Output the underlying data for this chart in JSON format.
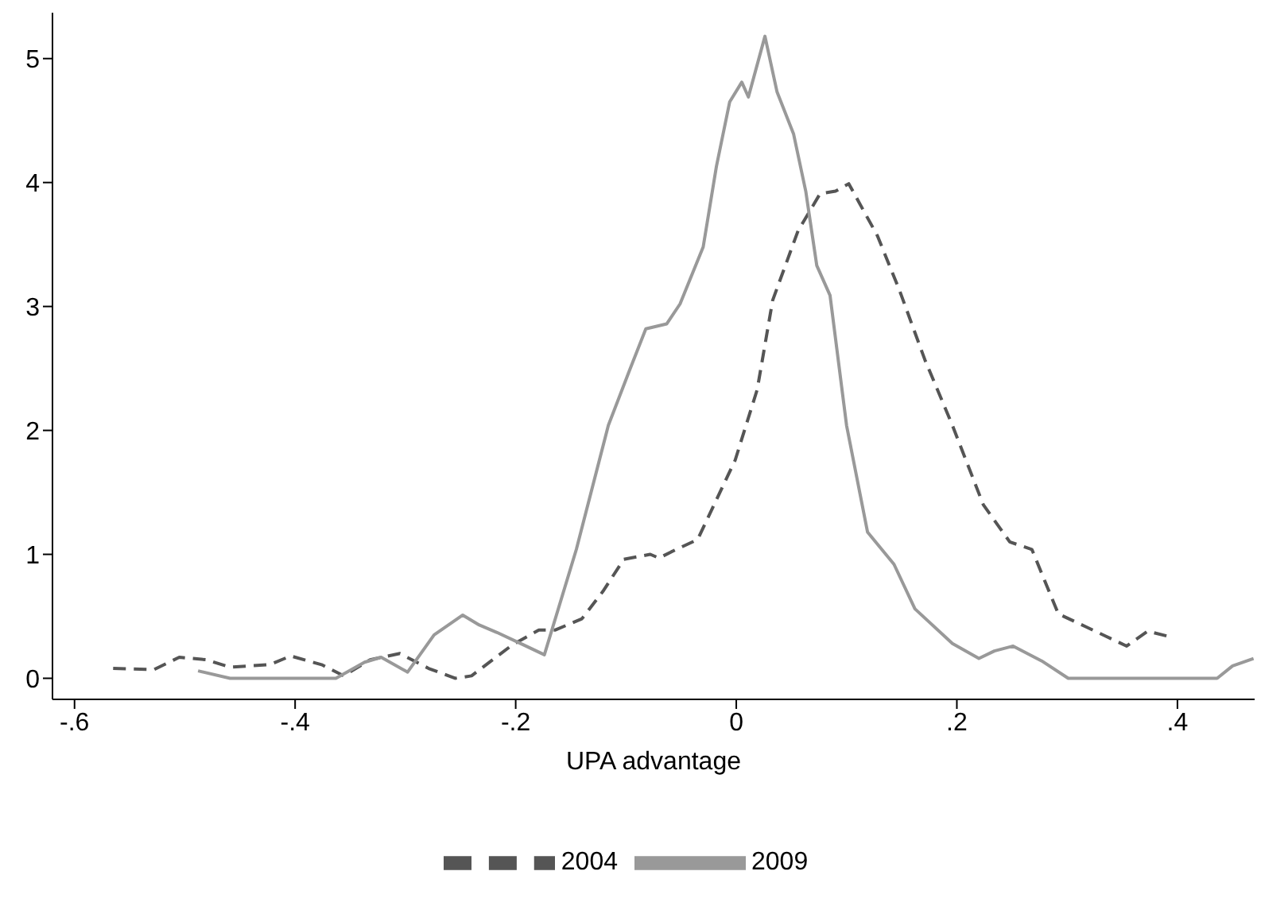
{
  "chart_data": {
    "type": "line",
    "xlabel": "UPA advantage",
    "xlim": [
      -0.62,
      0.47
    ],
    "ylim": [
      -0.17,
      5.37
    ],
    "xticks": [
      {
        "value": -0.6,
        "label": "-.6"
      },
      {
        "value": -0.4,
        "label": "-.4"
      },
      {
        "value": -0.2,
        "label": "-.2"
      },
      0,
      {
        "value": 0.2,
        "label": ".2"
      },
      {
        "value": 0.4,
        "label": ".4"
      }
    ],
    "yticks": [
      0,
      1,
      2,
      3,
      4,
      5
    ],
    "grid": false,
    "legend": "bottom",
    "marker": "none",
    "series": [
      {
        "name": "2004",
        "color": "#555555",
        "line_style": "dashed",
        "x": [
          -0.565,
          -0.528,
          -0.505,
          -0.481,
          -0.459,
          -0.423,
          -0.404,
          -0.376,
          -0.356,
          -0.332,
          -0.305,
          -0.279,
          -0.255,
          -0.24,
          -0.203,
          -0.179,
          -0.164,
          -0.14,
          -0.121,
          -0.102,
          -0.078,
          -0.07,
          -0.059,
          -0.035,
          -0.001,
          0.019,
          0.033,
          0.056,
          0.076,
          0.09,
          0.102,
          0.128,
          0.148,
          0.171,
          0.196,
          0.224,
          0.248,
          0.268,
          0.292,
          0.316,
          0.335,
          0.354,
          0.373,
          0.391
        ],
        "values": [
          0.08,
          0.07,
          0.17,
          0.15,
          0.09,
          0.11,
          0.18,
          0.11,
          0.02,
          0.15,
          0.2,
          0.08,
          0.0,
          0.02,
          0.27,
          0.39,
          0.39,
          0.48,
          0.7,
          0.96,
          1.0,
          0.97,
          1.02,
          1.12,
          1.76,
          2.33,
          3.05,
          3.61,
          3.91,
          3.93,
          3.99,
          3.57,
          3.13,
          2.57,
          2.04,
          1.4,
          1.1,
          1.04,
          0.52,
          0.42,
          0.34,
          0.26,
          0.38,
          0.34
        ]
      },
      {
        "name": "2009",
        "color": "#999999",
        "line_style": "solid",
        "x": [
          -0.488,
          -0.459,
          -0.363,
          -0.337,
          -0.322,
          -0.298,
          -0.274,
          -0.248,
          -0.233,
          -0.217,
          -0.193,
          -0.174,
          -0.145,
          -0.116,
          -0.097,
          -0.082,
          -0.063,
          -0.051,
          -0.03,
          -0.018,
          -0.006,
          0.005,
          0.011,
          0.026,
          0.037,
          0.052,
          0.063,
          0.073,
          0.085,
          0.1,
          0.119,
          0.143,
          0.162,
          0.196,
          0.22,
          0.234,
          0.251,
          0.277,
          0.301,
          0.436,
          0.45,
          0.469
        ],
        "values": [
          0.06,
          0.0,
          0.0,
          0.13,
          0.17,
          0.05,
          0.35,
          0.51,
          0.43,
          0.37,
          0.27,
          0.19,
          1.04,
          2.04,
          2.48,
          2.82,
          2.86,
          3.02,
          3.48,
          4.13,
          4.65,
          4.81,
          4.69,
          5.18,
          4.73,
          4.39,
          3.93,
          3.33,
          3.09,
          2.04,
          1.18,
          0.92,
          0.56,
          0.28,
          0.16,
          0.22,
          0.26,
          0.14,
          0.0,
          0.0,
          0.1,
          0.16
        ]
      }
    ]
  }
}
